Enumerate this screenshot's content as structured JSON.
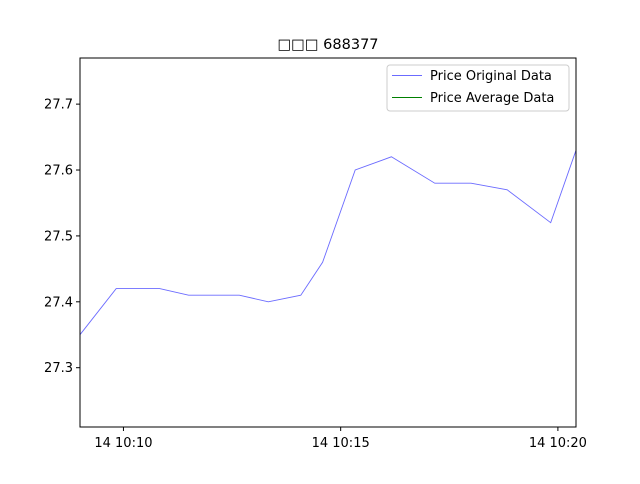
{
  "chart_data": {
    "type": "line",
    "title": "□□□  688377",
    "xlabel": "",
    "ylabel": "",
    "ylim": [
      27.21,
      27.77
    ],
    "y_ticks": [
      27.3,
      27.4,
      27.5,
      27.6,
      27.7
    ],
    "y_tick_labels": [
      "27.3",
      "27.4",
      "27.5",
      "27.6",
      "27.7"
    ],
    "xlim": [
      "14 10:09:00",
      "14 10:20:25"
    ],
    "x_ticks": [
      "14 10:10:00",
      "14 10:15:00",
      "14 10:20:00"
    ],
    "x_tick_labels": [
      "14 10:10",
      "14 10:15",
      "14 10:20"
    ],
    "grid": false,
    "legend_position": "top-right",
    "series": [
      {
        "name": "Price Original Data",
        "color": "#6b6bff",
        "x": [
          "14 10:09:00",
          "14 10:09:50",
          "14 10:10:50",
          "14 10:11:30",
          "14 10:12:40",
          "14 10:13:20",
          "14 10:14:05",
          "14 10:14:35",
          "14 10:15:20",
          "14 10:16:10",
          "14 10:17:10",
          "14 10:18:00",
          "14 10:18:50",
          "14 10:19:50",
          "14 10:20:25"
        ],
        "values": [
          27.35,
          27.42,
          27.42,
          27.41,
          27.41,
          27.4,
          27.41,
          27.46,
          27.6,
          27.62,
          27.58,
          27.58,
          27.57,
          27.52,
          27.63
        ]
      },
      {
        "name": "Price Average Data",
        "color": "#008000",
        "x": [],
        "values": []
      }
    ]
  }
}
